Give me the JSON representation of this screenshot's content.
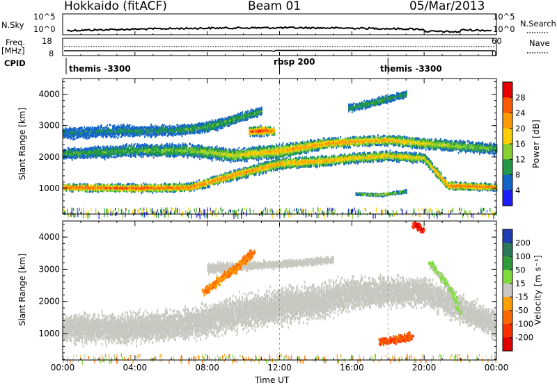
{
  "header": {
    "station": "Hokkaido (fitACF)",
    "beam": "Beam 01",
    "date": "05/Mar/2013"
  },
  "top_panels": {
    "nsky": {
      "label": "N.Sky",
      "right_label": "N.Search",
      "left_ticks": [
        "10^5",
        "10^0"
      ],
      "right_ticks": [
        "10^5",
        "10^0"
      ]
    },
    "freq": {
      "label_line1": "Freq.",
      "label_line2": "[MHz]",
      "right_label": "Nave",
      "left_ticks": [
        "18",
        "8"
      ],
      "right_ticks": [
        "60",
        "0"
      ]
    },
    "cpid": {
      "label": "CPID",
      "segments": [
        {
          "start_hour": 0,
          "name": "themis -3300"
        },
        {
          "start_hour": 12,
          "name": "rbsp 200"
        },
        {
          "start_hour": 18,
          "name": "themis -3300"
        }
      ]
    }
  },
  "chart_data": [
    {
      "type": "heatmap",
      "title": "",
      "parameter": "Power",
      "unit": "dB",
      "colorbar_label": "Power [dB]",
      "colorbar_ticks": [
        "28",
        "24",
        "20",
        "16",
        "12",
        "8",
        "4"
      ],
      "colorbar_colors": [
        "#e80000",
        "#ff5a00",
        "#ff9a00",
        "#ffd000",
        "#88d030",
        "#229946",
        "#1565c8",
        "#1c1cff"
      ],
      "ylabel": "Slant Range [km]",
      "ylim": [
        180,
        4500
      ],
      "yticks": [
        1000,
        2000,
        3000,
        4000
      ],
      "xlim": [
        0,
        24
      ],
      "bands": [
        {
          "hours": [
            0,
            4,
            7,
            9.5,
            12,
            14.5,
            16,
            18,
            20,
            21.3,
            24
          ],
          "range_km": [
            1020,
            1000,
            1020,
            1420,
            1780,
            1870,
            1950,
            2030,
            1950,
            1080,
            1030
          ],
          "half_width_km": [
            100,
            120,
            120,
            140,
            160,
            150,
            140,
            140,
            140,
            120,
            100
          ],
          "peak_db": [
            26,
            26,
            24,
            22,
            20,
            20,
            18,
            18,
            16,
            24,
            24
          ]
        },
        {
          "hours": [
            0,
            4,
            7,
            9.5,
            12,
            14.5,
            16,
            18,
            20,
            24
          ],
          "range_km": [
            2100,
            2200,
            2200,
            2050,
            2180,
            2420,
            2480,
            2530,
            2420,
            2250
          ],
          "half_width_km": [
            170,
            190,
            200,
            180,
            200,
            150,
            140,
            140,
            160,
            170
          ],
          "peak_db": [
            9,
            10,
            12,
            16,
            20,
            22,
            22,
            20,
            16,
            10
          ]
        },
        {
          "hours": [
            0,
            3,
            6,
            8,
            9.5,
            11
          ],
          "range_km": [
            2750,
            2820,
            2830,
            2950,
            3200,
            3450
          ],
          "half_width_km": [
            180,
            180,
            170,
            160,
            150,
            120
          ],
          "peak_db": [
            6,
            7,
            8,
            10,
            10,
            9
          ]
        },
        {
          "hours": [
            10.3,
            11,
            11.7
          ],
          "range_km": [
            2800,
            2830,
            2820
          ],
          "half_width_km": [
            130,
            150,
            120
          ],
          "peak_db": [
            26,
            28,
            24
          ]
        },
        {
          "hours": [
            15.8,
            17,
            18,
            19
          ],
          "range_km": [
            3550,
            3700,
            3850,
            4000
          ],
          "half_width_km": [
            120,
            120,
            120,
            100
          ],
          "peak_db": [
            8,
            10,
            9,
            8
          ]
        },
        {
          "hours": [
            16.2,
            17.6,
            19
          ],
          "range_km": [
            820,
            780,
            900
          ],
          "half_width_km": [
            40,
            40,
            50
          ],
          "peak_db": [
            8,
            16,
            10
          ]
        }
      ]
    },
    {
      "type": "heatmap",
      "title": "",
      "parameter": "Velocity",
      "unit": "m s^-1",
      "colorbar_label": "Velocity [m s⁻¹]",
      "colorbar_ticks": [
        "200",
        "100",
        "50",
        "15",
        "-15",
        "-50",
        "-100",
        "-200"
      ],
      "colorbar_colors": [
        "#1e3cb4",
        "#2a7a5a",
        "#2f9a3a",
        "#7edc3c",
        "#c8c8c0",
        "#ffa000",
        "#ff6a00",
        "#ff3000",
        "#e00000"
      ],
      "ground_scatter_color": "#c8c8c0",
      "xlabel": "Time UT",
      "ylabel": "Slant Range [km]",
      "ylim": [
        180,
        4500
      ],
      "yticks": [
        1000,
        2000,
        3000,
        4000
      ],
      "xlim": [
        0,
        24
      ],
      "xticks": [
        "00:00",
        "04:00",
        "08:00",
        "12:00",
        "16:00",
        "20:00",
        "00:00"
      ],
      "features": [
        {
          "kind": "ground_scatter",
          "hours": [
            0,
            4,
            7,
            9.5,
            12,
            14.5,
            16,
            18,
            20,
            24
          ],
          "range_km": [
            1150,
            1180,
            1300,
            1600,
            1850,
            2050,
            2250,
            2300,
            2300,
            1250
          ],
          "half_width_km": [
            380,
            420,
            420,
            480,
            500,
            480,
            450,
            400,
            400,
            380
          ]
        },
        {
          "kind": "ground_scatter",
          "hours": [
            8,
            10,
            12,
            14,
            15
          ],
          "range_km": [
            3000,
            3100,
            3150,
            3250,
            3300
          ],
          "half_width_km": [
            150,
            120,
            100,
            100,
            80
          ]
        },
        {
          "kind": "ionospheric",
          "velocity_ms": -50,
          "hours": [
            7.8,
            9.5,
            10.5
          ],
          "range_km": [
            2300,
            3000,
            3500
          ]
        },
        {
          "kind": "ionospheric",
          "velocity_ms": 20,
          "hours": [
            20.3,
            21.5,
            22
          ],
          "range_km": [
            3200,
            2300,
            1600
          ]
        },
        {
          "kind": "ionospheric",
          "velocity_ms": -100,
          "hours": [
            17.5,
            18.5,
            19.3
          ],
          "range_km": [
            750,
            820,
            900
          ]
        },
        {
          "kind": "ionospheric",
          "velocity_ms": -200,
          "hours": [
            19.4,
            19.9
          ],
          "range_km": [
            4400,
            4200
          ]
        }
      ]
    }
  ]
}
